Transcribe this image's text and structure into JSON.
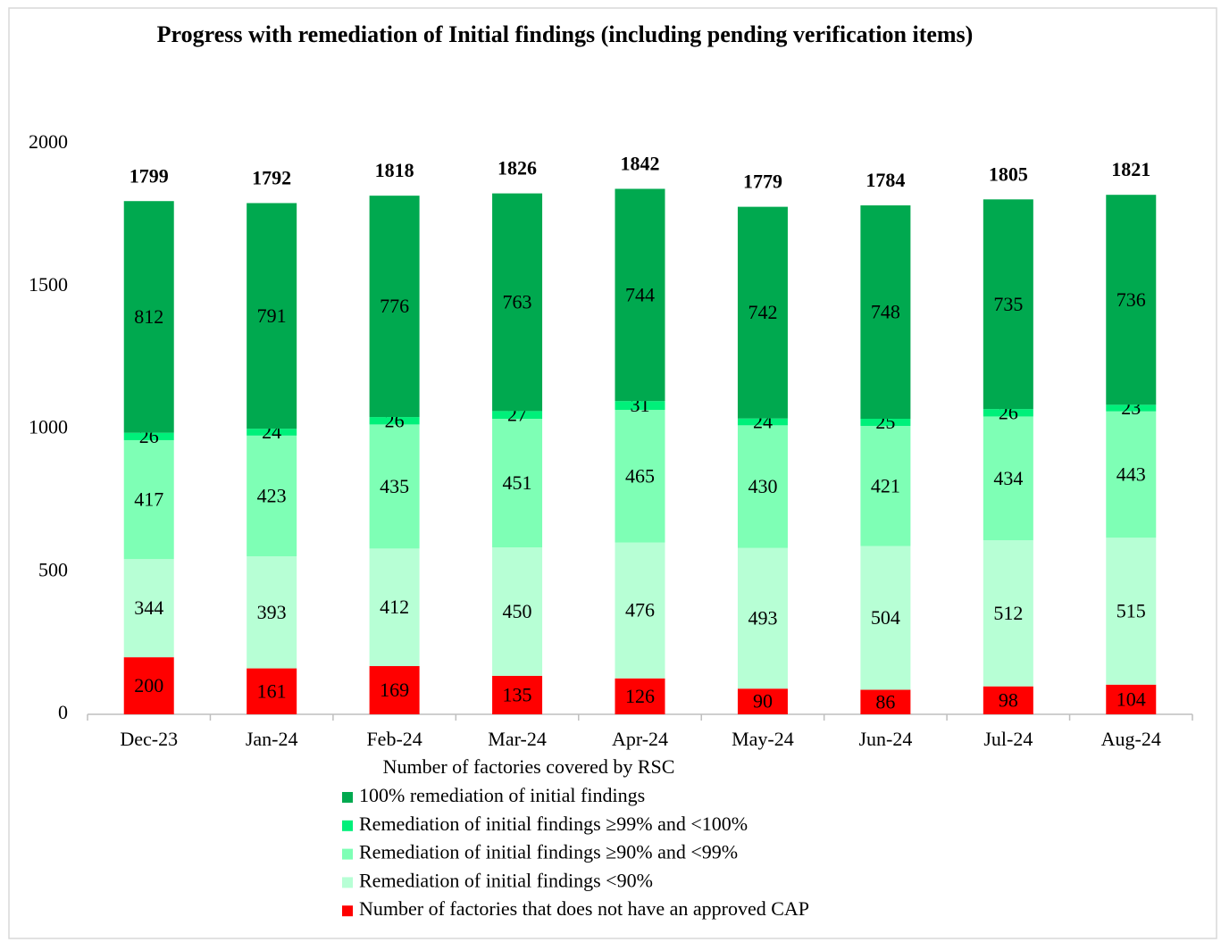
{
  "chart_data": {
    "type": "stacked_bar",
    "title": "Progress with remediation of Initial findings (including pending verification items)",
    "xlabel": "Number of factories covered by RSC",
    "categories": [
      "Dec-23",
      "Jan-24",
      "Feb-24",
      "Mar-24",
      "Apr-24",
      "May-24",
      "Jun-24",
      "Jul-24",
      "Aug-24"
    ],
    "series": [
      {
        "name": "Number of factories that does not have an approved CAP",
        "color": "#ff0000",
        "values": [
          200,
          161,
          169,
          135,
          126,
          90,
          86,
          98,
          104
        ]
      },
      {
        "name": "Remediation of initial findings <90%",
        "color": "#b7ffd5",
        "values": [
          344,
          393,
          412,
          450,
          476,
          493,
          504,
          512,
          515
        ]
      },
      {
        "name": "Remediation of initial findings ≥90% and <99%",
        "color": "#7effb5",
        "values": [
          417,
          423,
          435,
          451,
          465,
          430,
          421,
          434,
          443
        ]
      },
      {
        "name": "Remediation of initial findings ≥99% and <100%",
        "color": "#00f07a",
        "values": [
          26,
          24,
          26,
          27,
          31,
          24,
          25,
          26,
          23
        ]
      },
      {
        "name": "100% remediation of initial findings",
        "color": "#00a94f",
        "values": [
          812,
          791,
          776,
          763,
          744,
          742,
          748,
          735,
          736
        ]
      }
    ],
    "totals": [
      1799,
      1792,
      1818,
      1826,
      1842,
      1779,
      1784,
      1805,
      1821
    ],
    "ylim": [
      0,
      2000
    ],
    "yticks": [
      0,
      500,
      1000,
      1500,
      2000
    ],
    "grid": false,
    "legend": "bottom"
  }
}
